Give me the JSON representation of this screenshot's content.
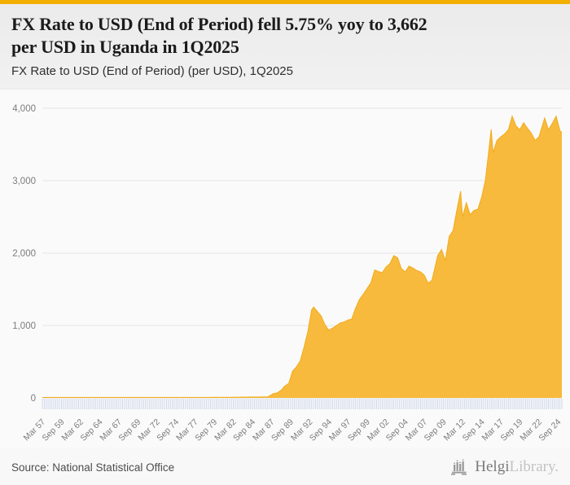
{
  "accent": {
    "bar_color": "#F2AE01"
  },
  "header": {
    "title_line1": "FX Rate to USD (End of Period) fell 5.75% yoy to 3,662",
    "title_line2": "per USD in Uganda in 1Q2025",
    "subtitle": "FX Rate to USD (End of Period) (per USD), 1Q2025"
  },
  "chart_data": {
    "type": "area",
    "title": "FX Rate to USD (End of Period) (per USD), 1Q2025",
    "series_name": "FX Rate to USD (End of Period)",
    "country": "Uganda",
    "latest_value": 3662,
    "latest_period": "1Q2025",
    "yoy_change_pct": -5.75,
    "fill_color": "#F7BA3C",
    "line_color": "#F3AC1C",
    "grid_color": "#e4e4e4",
    "tick_color": "#c9d3e6",
    "axis_text_color": "#7c7c7c",
    "ylim": [
      0,
      4000
    ],
    "y_ticks": [
      {
        "value": 0,
        "label": "0"
      },
      {
        "value": 1000,
        "label": "1,000"
      },
      {
        "value": 2000,
        "label": "2,000"
      },
      {
        "value": 3000,
        "label": "3,000"
      },
      {
        "value": 4000,
        "label": "4,000"
      }
    ],
    "x_domain_years": [
      1957.0,
      2025.0
    ],
    "x_tick_step_years": 2.5,
    "x_tick_labels": [
      "Mar 57",
      "Sep 59",
      "Mar 62",
      "Sep 64",
      "Mar 67",
      "Sep 69",
      "Mar 72",
      "Sep 74",
      "Mar 77",
      "Sep 79",
      "Mar 82",
      "Sep 84",
      "Mar 87",
      "Sep 89",
      "Mar 92",
      "Sep 94",
      "Mar 97",
      "Sep 99",
      "Mar 02",
      "Sep 04",
      "Mar 07",
      "Sep 09",
      "Mar 12",
      "Sep 14",
      "Mar 17",
      "Sep 19",
      "Mar 22",
      "Sep 24"
    ],
    "quarterly_resolution": 0.25,
    "points": [
      [
        1957.0,
        7
      ],
      [
        1975.0,
        7
      ],
      [
        1981.0,
        8
      ],
      [
        1984.0,
        12
      ],
      [
        1986.5,
        14
      ],
      [
        1987.25,
        60
      ],
      [
        1987.75,
        70
      ],
      [
        1988.25,
        106
      ],
      [
        1988.75,
        165
      ],
      [
        1989.25,
        200
      ],
      [
        1989.75,
        370
      ],
      [
        1990.25,
        428
      ],
      [
        1990.75,
        510
      ],
      [
        1991.25,
        700
      ],
      [
        1991.75,
        915
      ],
      [
        1992.25,
        1217
      ],
      [
        1992.5,
        1255
      ],
      [
        1993.0,
        1195
      ],
      [
        1993.5,
        1130
      ],
      [
        1994.0,
        1010
      ],
      [
        1994.5,
        935
      ],
      [
        1995.0,
        965
      ],
      [
        1995.5,
        1000
      ],
      [
        1996.0,
        1035
      ],
      [
        1996.5,
        1050
      ],
      [
        1997.0,
        1075
      ],
      [
        1997.5,
        1090
      ],
      [
        1998.0,
        1240
      ],
      [
        1998.5,
        1360
      ],
      [
        1999.0,
        1430
      ],
      [
        1999.5,
        1510
      ],
      [
        2000.0,
        1590
      ],
      [
        2000.5,
        1767
      ],
      [
        2001.0,
        1745
      ],
      [
        2001.5,
        1730
      ],
      [
        2002.0,
        1810
      ],
      [
        2002.5,
        1855
      ],
      [
        2003.0,
        1965
      ],
      [
        2003.5,
        1935
      ],
      [
        2004.0,
        1785
      ],
      [
        2004.5,
        1740
      ],
      [
        2005.0,
        1820
      ],
      [
        2005.5,
        1795
      ],
      [
        2006.0,
        1760
      ],
      [
        2006.5,
        1740
      ],
      [
        2007.0,
        1695
      ],
      [
        2007.5,
        1585
      ],
      [
        2008.0,
        1625
      ],
      [
        2008.75,
        1965
      ],
      [
        2009.25,
        2050
      ],
      [
        2009.75,
        1895
      ],
      [
        2010.25,
        2230
      ],
      [
        2010.75,
        2310
      ],
      [
        2011.25,
        2590
      ],
      [
        2011.75,
        2855
      ],
      [
        2012.0,
        2500
      ],
      [
        2012.5,
        2695
      ],
      [
        2013.0,
        2530
      ],
      [
        2013.5,
        2590
      ],
      [
        2014.0,
        2605
      ],
      [
        2014.5,
        2770
      ],
      [
        2015.0,
        3010
      ],
      [
        2015.75,
        3706
      ],
      [
        2016.0,
        3385
      ],
      [
        2016.5,
        3555
      ],
      [
        2017.0,
        3605
      ],
      [
        2017.5,
        3645
      ],
      [
        2018.0,
        3705
      ],
      [
        2018.5,
        3890
      ],
      [
        2019.0,
        3755
      ],
      [
        2019.5,
        3705
      ],
      [
        2020.0,
        3800
      ],
      [
        2020.5,
        3725
      ],
      [
        2021.0,
        3655
      ],
      [
        2021.5,
        3555
      ],
      [
        2022.0,
        3605
      ],
      [
        2022.75,
        3865
      ],
      [
        2023.25,
        3705
      ],
      [
        2023.75,
        3790
      ],
      [
        2024.25,
        3890
      ],
      [
        2024.75,
        3690
      ],
      [
        2025.0,
        3662
      ]
    ]
  },
  "footer": {
    "source": "Source: National Statistical Office",
    "logo": {
      "name_primary": "Helgi",
      "name_secondary": "Library."
    }
  }
}
